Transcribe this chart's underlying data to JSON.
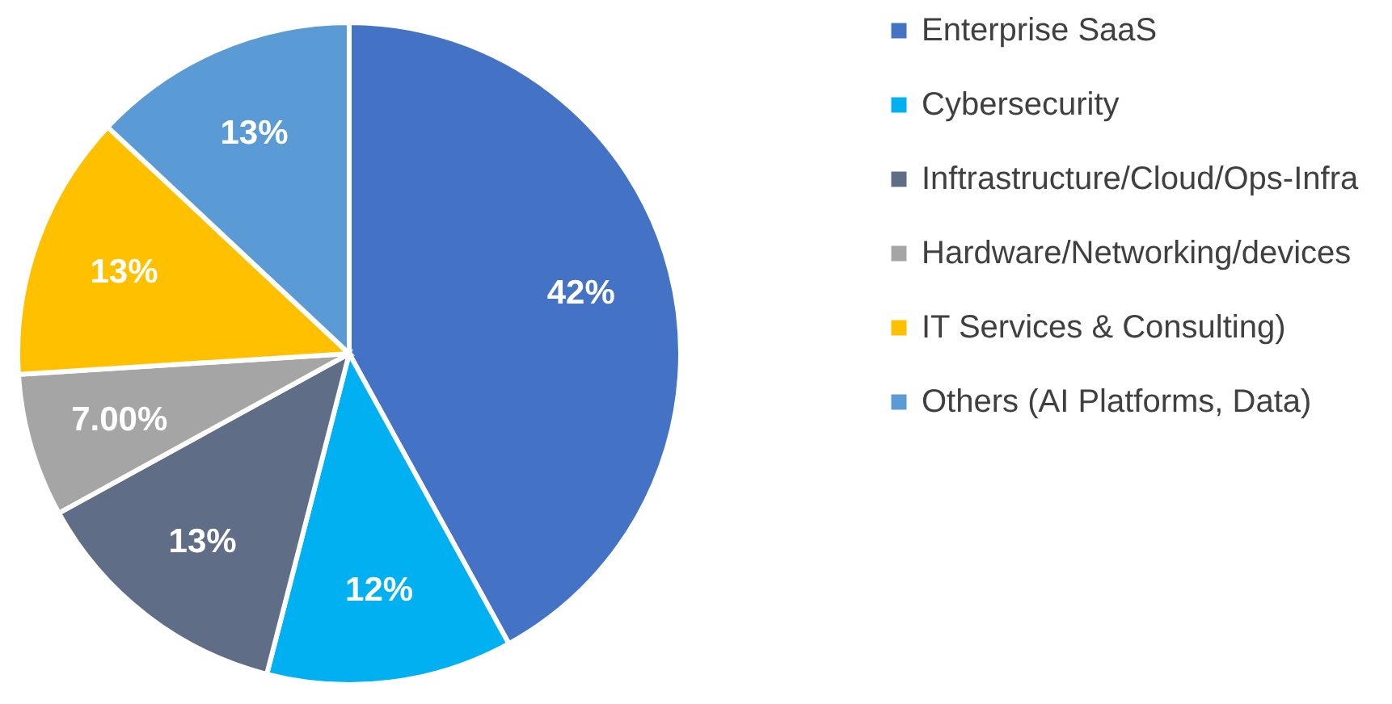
{
  "chart_data": {
    "type": "pie",
    "categories": [
      "Enterprise SaaS",
      "Cybersecurity",
      "Inftrastructure/Cloud/Ops-Infra",
      "Hardware/Networking/devices",
      "IT Services & Consulting)",
      "Others (AI Platforms, Data)"
    ],
    "values": [
      42,
      12,
      13,
      7,
      13,
      13
    ],
    "value_labels": [
      "42%",
      "12%",
      "13%",
      "7.00%",
      "13%",
      "13%"
    ],
    "colors": [
      "#4472c4",
      "#00b0f0",
      "#5f6d86",
      "#a5a5a5",
      "#ffc000",
      "#5b9bd5"
    ],
    "legend": "right"
  }
}
